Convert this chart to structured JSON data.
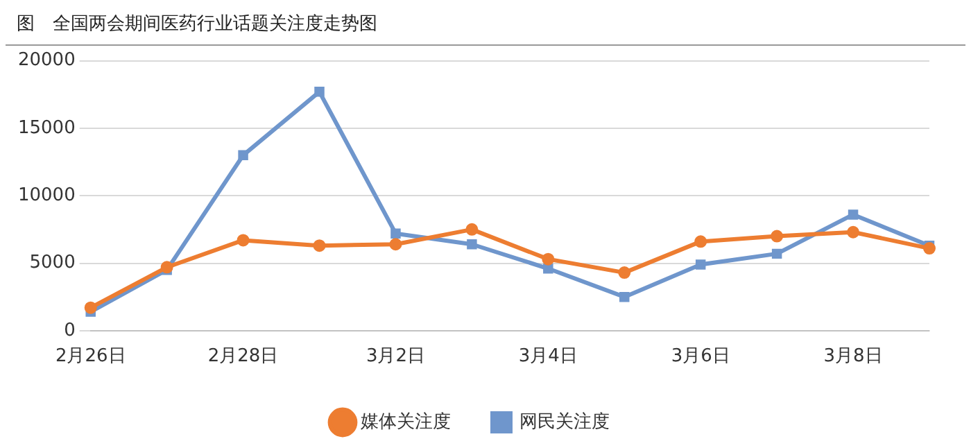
{
  "chart_data": {
    "type": "line",
    "title": "图　全国两会期间医药行业话题关注度走势图",
    "categories": [
      "2月26日",
      null,
      "2月28日",
      null,
      "3月2日",
      null,
      "3月4日",
      null,
      "3月6日",
      null,
      "3月8日",
      null
    ],
    "series": [
      {
        "name": "网民关注度",
        "color": "#6f96cc",
        "marker": "square",
        "values": [
          1400,
          4500,
          13000,
          17700,
          7200,
          6400,
          4600,
          2500,
          4900,
          5700,
          8600,
          6300
        ]
      },
      {
        "name": "媒体关注度",
        "color": "#ed7d31",
        "marker": "circle",
        "values": [
          1700,
          4700,
          6700,
          6300,
          6400,
          7500,
          5300,
          4300,
          6600,
          7000,
          7300,
          6100
        ]
      }
    ],
    "ylim": [
      0,
      20000
    ],
    "yticks": [
      0,
      5000,
      10000,
      15000,
      20000
    ],
    "grid": "y",
    "legend": "bottom",
    "line_style": "solid"
  }
}
